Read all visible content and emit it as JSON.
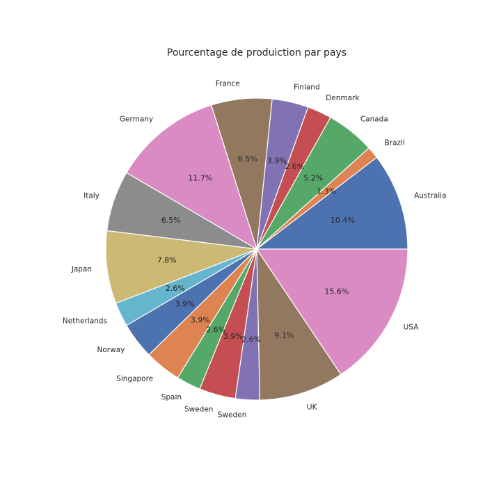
{
  "chart_data": {
    "type": "pie",
    "title": "Pourcentage de produiction par pays",
    "start_angle_deg": 0,
    "direction": "counterclockwise",
    "slices": [
      {
        "label": "Australia",
        "value": 10.4,
        "pct_label": "10.4%",
        "color": "#4c72b0"
      },
      {
        "label": "Brazil",
        "value": 1.3,
        "pct_label": "1.3%",
        "color": "#dd8452"
      },
      {
        "label": "Canada",
        "value": 5.2,
        "pct_label": "5.2%",
        "color": "#55a868"
      },
      {
        "label": "Denmark",
        "value": 2.6,
        "pct_label": "2.6%",
        "color": "#c44e52"
      },
      {
        "label": "Finland",
        "value": 3.9,
        "pct_label": "3.9%",
        "color": "#8172b3"
      },
      {
        "label": "France",
        "value": 6.5,
        "pct_label": "6.5%",
        "color": "#937860"
      },
      {
        "label": "Germany",
        "value": 11.7,
        "pct_label": "11.7%",
        "color": "#da8bc3"
      },
      {
        "label": "Italy",
        "value": 6.5,
        "pct_label": "6.5%",
        "color": "#8c8c8c"
      },
      {
        "label": "Japan",
        "value": 7.8,
        "pct_label": "7.8%",
        "color": "#ccb974"
      },
      {
        "label": "Netherlands",
        "value": 2.6,
        "pct_label": "2.6%",
        "color": "#64b5cd"
      },
      {
        "label": "Norway",
        "value": 3.9,
        "pct_label": "3.9%",
        "color": "#4c72b0"
      },
      {
        "label": "Singapore",
        "value": 3.9,
        "pct_label": "3.9%",
        "color": "#dd8452"
      },
      {
        "label": "Spain",
        "value": 2.6,
        "pct_label": "2.6%",
        "color": "#55a868"
      },
      {
        "label": "Sweden",
        "value": 3.9,
        "pct_label": "3.9%",
        "color": "#c44e52"
      },
      {
        "label": "Sweden",
        "value": 2.6,
        "pct_label": "2.6%",
        "color": "#8172b3"
      },
      {
        "label": "UK",
        "value": 9.1,
        "pct_label": "9.1%",
        "color": "#937860"
      },
      {
        "label": "USA",
        "value": 15.6,
        "pct_label": "15.6%",
        "color": "#da8bc3"
      }
    ]
  }
}
